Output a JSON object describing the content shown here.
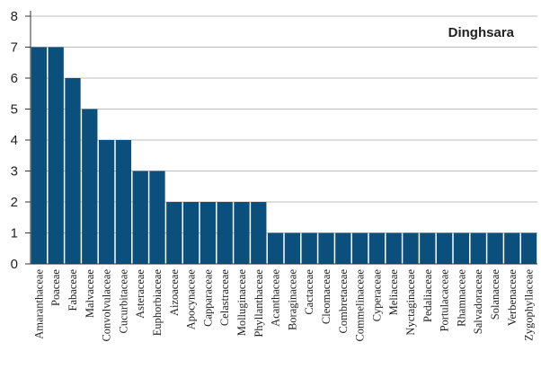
{
  "chart_data": {
    "type": "bar",
    "title": "Dinghsara",
    "xlabel": "",
    "ylabel": "",
    "ylim": [
      0,
      8
    ],
    "yticks": [
      0,
      1,
      2,
      3,
      4,
      5,
      6,
      7,
      8
    ],
    "grid": true,
    "legend": "none",
    "bar_color": "#0b4f7c",
    "categories": [
      "Amaranthaceae",
      "Poaceae",
      "Fabaceae",
      "Malvaceae",
      "Convolvulaceae",
      "Cucurbitaceae",
      "Asteraceae",
      "Euphorbiaceae",
      "Aizoaceae",
      "Apocynaceae",
      "Capparaceae",
      "Celastraceae",
      "Molluginaceae",
      "Phyllanthaceae",
      "Acanthaceae",
      "Boraginaceae",
      "Cactaceae",
      "Cleomaceae",
      "Combretaceae",
      "Commelinaceae",
      "Cyperaceae",
      "Meliaceae",
      "Nyctaginaceae",
      "Pedaliaceae",
      "Portulacaceae",
      "Rhamnaceae",
      "Salvadoraceae",
      "Solanaceae",
      "Verbenaceae",
      "Zygophyllaceae"
    ],
    "values": [
      7,
      7,
      6,
      5,
      4,
      4,
      3,
      3,
      2,
      2,
      2,
      2,
      2,
      2,
      1,
      1,
      1,
      1,
      1,
      1,
      1,
      1,
      1,
      1,
      1,
      1,
      1,
      1,
      1,
      1
    ]
  }
}
